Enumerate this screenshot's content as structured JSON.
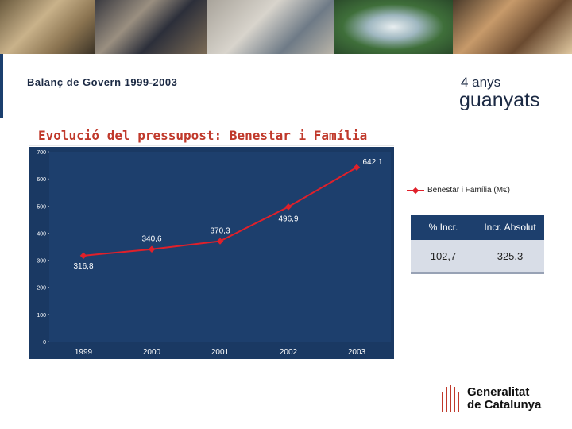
{
  "header": {
    "subtitle": "Balanç de Govern 1999-2003",
    "tagline_small": "4 anys",
    "tagline_big": "guanyats"
  },
  "chart_data": {
    "type": "line",
    "title": "Evolució del pressupost: Benestar i Família",
    "categories": [
      "1999",
      "2000",
      "2001",
      "2002",
      "2003"
    ],
    "series": [
      {
        "name": "Benestar i Família (M€)",
        "values": [
          316.8,
          340.6,
          370.3,
          496.9,
          642.1
        ],
        "labels": [
          "316,8",
          "340,6",
          "370,3",
          "496,9",
          "642,1"
        ]
      }
    ],
    "yticks": [
      "0",
      "100",
      "200",
      "300",
      "400",
      "500",
      "600",
      "700"
    ],
    "ylim": [
      0,
      700
    ],
    "grid": false,
    "legend": "right",
    "colors": {
      "plot_bg": "#1d3f6d",
      "line": "#e0202a"
    }
  },
  "table": {
    "headers": [
      "% Incr.",
      "Incr. Absolut"
    ],
    "values": [
      "102,7",
      "325,3"
    ]
  },
  "logo": {
    "line1": "Generalitat",
    "line2": "de Catalunya"
  },
  "colors": {
    "navy": "#1b3f6e",
    "accent_red": "#c0392b"
  }
}
